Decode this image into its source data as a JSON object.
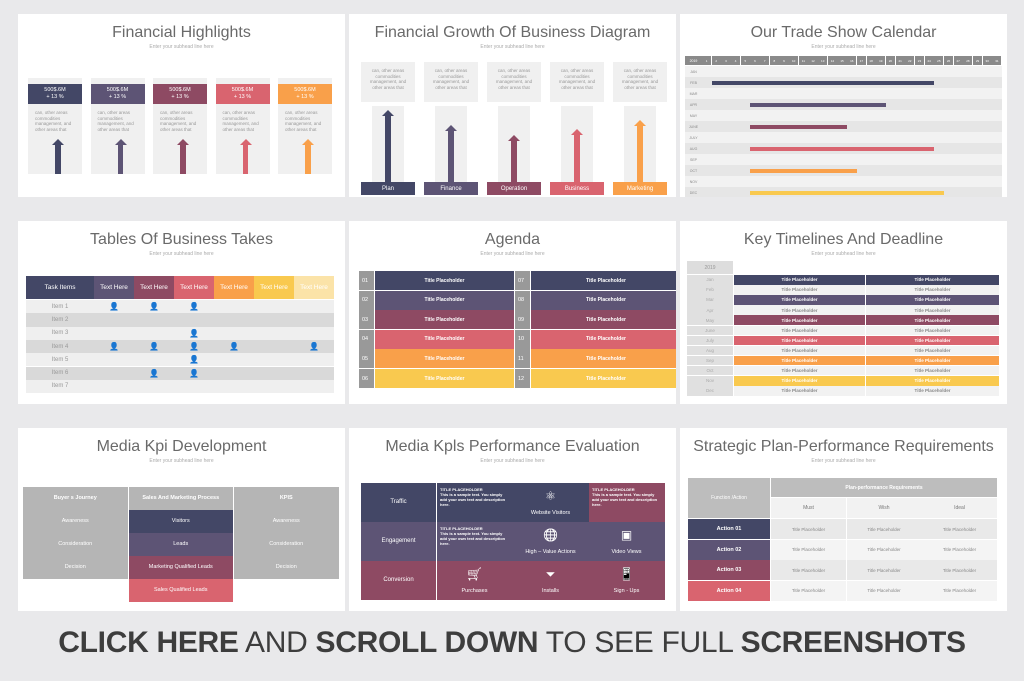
{
  "colors": {
    "navy": "#434766",
    "purple": "#5d5475",
    "plum": "#8e4a63",
    "rose": "#d9646f",
    "orange": "#f9a04a",
    "yellow": "#f9c94f",
    "pale": "#fbe3a8",
    "gray": "#b5b5b5"
  },
  "subhead": "Enter your subhead line here",
  "slides": {
    "financial_highlights": {
      "title": "Financial Highlights",
      "subhead": "Enter your subhead line here",
      "cards": [
        {
          "value": "500$.6M",
          "change": "+ 13 %",
          "text": "can, other areas commodities management, and other areas that",
          "color": "#434766"
        },
        {
          "value": "500$.6M",
          "change": "+ 13 %",
          "text": "can, other areas commodities management, and other areas that",
          "color": "#5d5475"
        },
        {
          "value": "500$.6M",
          "change": "+ 13 %",
          "text": "can, other areas commodities management, and other areas that",
          "color": "#8e4a63"
        },
        {
          "value": "500$.6M",
          "change": "+ 13 %",
          "text": "can, other areas commodities management, and other areas that",
          "color": "#d9646f"
        },
        {
          "value": "500$.6M",
          "change": "+ 13 %",
          "text": "can, other areas commodities management, and other areas that",
          "color": "#f9a04a"
        }
      ]
    },
    "financial_growth": {
      "title": "Financial Growth Of Business Diagram",
      "subhead": "Enter your subhead line here",
      "columns": [
        {
          "label": "Plan",
          "text": "can, other areas commodities management, and other areas that",
          "color": "#434766",
          "level": 0.95
        },
        {
          "label": "Finance",
          "text": "can, other areas commodities management, and other areas that",
          "color": "#5d5475",
          "level": 0.75
        },
        {
          "label": "Operation",
          "text": "can, other areas commodities management, and other areas that",
          "color": "#8e4a63",
          "level": 0.62
        },
        {
          "label": "Business",
          "text": "can, other areas commodities management, and other areas that",
          "color": "#d9646f",
          "level": 0.7
        },
        {
          "label": "Marketing",
          "text": "can, other areas commodities management, and other areas that",
          "color": "#f9a04a",
          "level": 0.82
        }
      ]
    },
    "trade_show_calendar": {
      "title": "Our Trade Show Calendar",
      "subhead": "Enter your subhead line here",
      "corner": "2019",
      "months": [
        "JAN",
        "FEB",
        "MAR",
        "APR",
        "MAY",
        "JUNE",
        "JULY",
        "AUG",
        "SEP",
        "OCT",
        "NOV",
        "DEC"
      ],
      "days": [
        "1",
        "2",
        "3",
        "4",
        "5",
        "6",
        "7",
        "8",
        "9",
        "10",
        "11",
        "12",
        "13",
        "14",
        "15",
        "16",
        "17",
        "18",
        "19",
        "20",
        "21",
        "22",
        "23",
        "24",
        "25",
        "26",
        "27",
        "28",
        "29",
        "30",
        "31"
      ],
      "bars": [
        {
          "month": "FEB",
          "start": 2,
          "end": 24,
          "color": "#434766"
        },
        {
          "month": "APR",
          "start": 6,
          "end": 19,
          "color": "#5d5475"
        },
        {
          "month": "JUNE",
          "start": 6,
          "end": 15,
          "color": "#8e4a63"
        },
        {
          "month": "AUG",
          "start": 6,
          "end": 24,
          "color": "#d9646f"
        },
        {
          "month": "OCT",
          "start": 6,
          "end": 16,
          "color": "#f9a04a"
        },
        {
          "month": "DEC",
          "start": 6,
          "end": 25,
          "color": "#f9c94f"
        }
      ]
    },
    "business_takes": {
      "title": "Tables Of Business Takes",
      "subhead": "Enter your subhead line here",
      "headers": [
        "Task Items",
        "Text Here",
        "Text Here",
        "Text Here",
        "Text Here",
        "Text Here",
        "Text Here"
      ],
      "header_colors": [
        "#434766",
        "#5d5475",
        "#8e4a63",
        "#d9646f",
        "#f9a04a",
        "#f9c94f",
        "#fbe3a8"
      ],
      "rows": [
        {
          "label": "Item 1",
          "marks": [
            1,
            1,
            1,
            0,
            0,
            0
          ]
        },
        {
          "label": "Item 2",
          "marks": [
            0,
            0,
            0,
            0,
            0,
            0
          ]
        },
        {
          "label": "Item 3",
          "marks": [
            0,
            0,
            1,
            0,
            0,
            0
          ]
        },
        {
          "label": "Item 4",
          "marks": [
            1,
            1,
            1,
            1,
            0,
            1
          ]
        },
        {
          "label": "Item 5",
          "marks": [
            0,
            0,
            1,
            0,
            0,
            0
          ]
        },
        {
          "label": "Item 6",
          "marks": [
            0,
            1,
            1,
            0,
            0,
            0
          ]
        },
        {
          "label": "Item 7",
          "marks": [
            0,
            0,
            0,
            0,
            0,
            0
          ]
        }
      ]
    },
    "agenda": {
      "title": "Agenda",
      "subhead": "Enter your subhead line here",
      "items": [
        {
          "num": "01",
          "label": "Title Placeholder",
          "color": "#434766"
        },
        {
          "num": "02",
          "label": "Title Placeholder",
          "color": "#5d5475"
        },
        {
          "num": "03",
          "label": "Title Placeholder",
          "color": "#8e4a63"
        },
        {
          "num": "04",
          "label": "Title Placeholder",
          "color": "#d9646f"
        },
        {
          "num": "05",
          "label": "Title Placeholder",
          "color": "#f9a04a"
        },
        {
          "num": "06",
          "label": "Title Placeholder",
          "color": "#f9c94f"
        },
        {
          "num": "07",
          "label": "Title Placeholder",
          "color": "#434766"
        },
        {
          "num": "08",
          "label": "Title Placeholder",
          "color": "#5d5475"
        },
        {
          "num": "09",
          "label": "Title Placeholder",
          "color": "#8e4a63"
        },
        {
          "num": "10",
          "label": "Title Placeholder",
          "color": "#d9646f"
        },
        {
          "num": "11",
          "label": "Title Placeholder",
          "color": "#f9a04a"
        },
        {
          "num": "12",
          "label": "Title Placeholder",
          "color": "#f9c94f"
        }
      ]
    },
    "key_timelines": {
      "title": "Key Timelines And Deadline",
      "subhead": "Enter your subhead line here",
      "year": "2019",
      "rows": [
        {
          "month": "Jan",
          "a": "Title Placeholder",
          "b": "Title Placeholder",
          "color": "#434766"
        },
        {
          "month": "Feb",
          "a": "Title Placeholder",
          "b": "Title Placeholder",
          "color": ""
        },
        {
          "month": "Mar",
          "a": "Title Placeholder",
          "b": "Title Placeholder",
          "color": "#5d5475"
        },
        {
          "month": "Apr",
          "a": "Title Placeholder",
          "b": "Title Placeholder",
          "color": ""
        },
        {
          "month": "May",
          "a": "Title Placeholder",
          "b": "Title Placeholder",
          "color": "#8e4a63"
        },
        {
          "month": "June",
          "a": "Title Placeholder",
          "b": "Title Placeholder",
          "color": ""
        },
        {
          "month": "July",
          "a": "Title Placeholder",
          "b": "Title Placeholder",
          "color": "#d9646f"
        },
        {
          "month": "Aug",
          "a": "Title Placeholder",
          "b": "Title Placeholder",
          "color": ""
        },
        {
          "month": "Sep",
          "a": "Title Placeholder",
          "b": "Title Placeholder",
          "color": "#f9a04a"
        },
        {
          "month": "Oct",
          "a": "Title Placeholder",
          "b": "Title Placeholder",
          "color": ""
        },
        {
          "month": "Nov",
          "a": "Title Placeholder",
          "b": "Title Placeholder",
          "color": "#f9c94f"
        },
        {
          "month": "Dec",
          "a": "Title Placeholder",
          "b": "Title Placeholder",
          "color": ""
        }
      ]
    },
    "media_kpi": {
      "title": "Media Kpi Development",
      "subhead": "Enter your subhead line here",
      "headers": [
        "Buyer s Journey",
        "Sales And Marketing Process",
        "KPIS"
      ],
      "left": [
        "Awareness",
        "Consideration",
        "Decision"
      ],
      "middle": [
        {
          "label": "Visitors",
          "color": "#434766"
        },
        {
          "label": "Leads",
          "color": "#5d5475"
        },
        {
          "label": "Marketing Qualified Leads",
          "color": "#8e4a63"
        },
        {
          "label": "Sales Qualified Leads",
          "color": "#d9646f"
        }
      ],
      "right": [
        "Awareness",
        "Consideration",
        "Decision"
      ]
    },
    "media_kpis_evaluation": {
      "title": "Media Kpls Performance Evaluation",
      "subhead": "Enter your subhead line here",
      "rows": [
        {
          "label": "Traffic",
          "color": "#434766",
          "cells": [
            {
              "type": "text",
              "heading": "TITLE PLACEHOLDER",
              "body": "This is a sample text. You simply add your own text and description here."
            },
            {
              "type": "icon",
              "icon": "atom-icon",
              "glyph": "⚛",
              "label": "Website Visitors"
            },
            {
              "type": "text",
              "heading": "TITLE PLACEHOLDER",
              "body": "This is a sample text. You simply add your own text and description here.",
              "color": "#8e4a63"
            }
          ]
        },
        {
          "label": "Engagement",
          "color": "#5d5475",
          "cells": [
            {
              "type": "text",
              "heading": "TITLE PLACEHOLDER",
              "body": "This is a sample text. You simply add your own text and description here."
            },
            {
              "type": "icon",
              "icon": "globe-icon",
              "glyph": "🌐",
              "label": "High – Value Actions"
            },
            {
              "type": "icon",
              "icon": "video-icon",
              "glyph": "▣",
              "label": "Video Views"
            }
          ]
        },
        {
          "label": "Conversion",
          "color": "#8e4a63",
          "cells": [
            {
              "type": "icon",
              "icon": "cart-icon",
              "glyph": "🛒",
              "label": "Purchases"
            },
            {
              "type": "icon",
              "icon": "install-icon",
              "glyph": "⏷",
              "label": "Installs"
            },
            {
              "type": "icon",
              "icon": "phone-icon",
              "glyph": "📱",
              "label": "Sign - Ups"
            }
          ]
        }
      ]
    },
    "strategic_plan": {
      "title": "Strategic Plan-Performance Requirements",
      "subhead": "Enter your subhead line here",
      "corner": "Function /Action",
      "group": "Plan-performance Requirements",
      "columns": [
        "Must",
        "Wish",
        "Ideal"
      ],
      "rows": [
        {
          "label": "Action 01",
          "color": "#434766",
          "cells": [
            "Title Placeholder",
            "Title Placeholder",
            "Title Placeholder"
          ]
        },
        {
          "label": "Action 02",
          "color": "#5d5475",
          "cells": [
            "Title Placeholder",
            "Title Placeholder",
            "Title Placeholder"
          ]
        },
        {
          "label": "Action 03",
          "color": "#8e4a63",
          "cells": [
            "Title Placeholder",
            "Title Placeholder",
            "Title Placeholder"
          ]
        },
        {
          "label": "Action 04",
          "color": "#d9646f",
          "cells": [
            "Title Placeholder",
            "Title Placeholder",
            "Title Placeholder"
          ]
        }
      ]
    }
  },
  "banner": {
    "p1": "CLICK HERE",
    "p2": " AND ",
    "p3": "SCROLL DOWN",
    "p4": " TO SEE FULL ",
    "p5": "SCREENSHOTS"
  }
}
